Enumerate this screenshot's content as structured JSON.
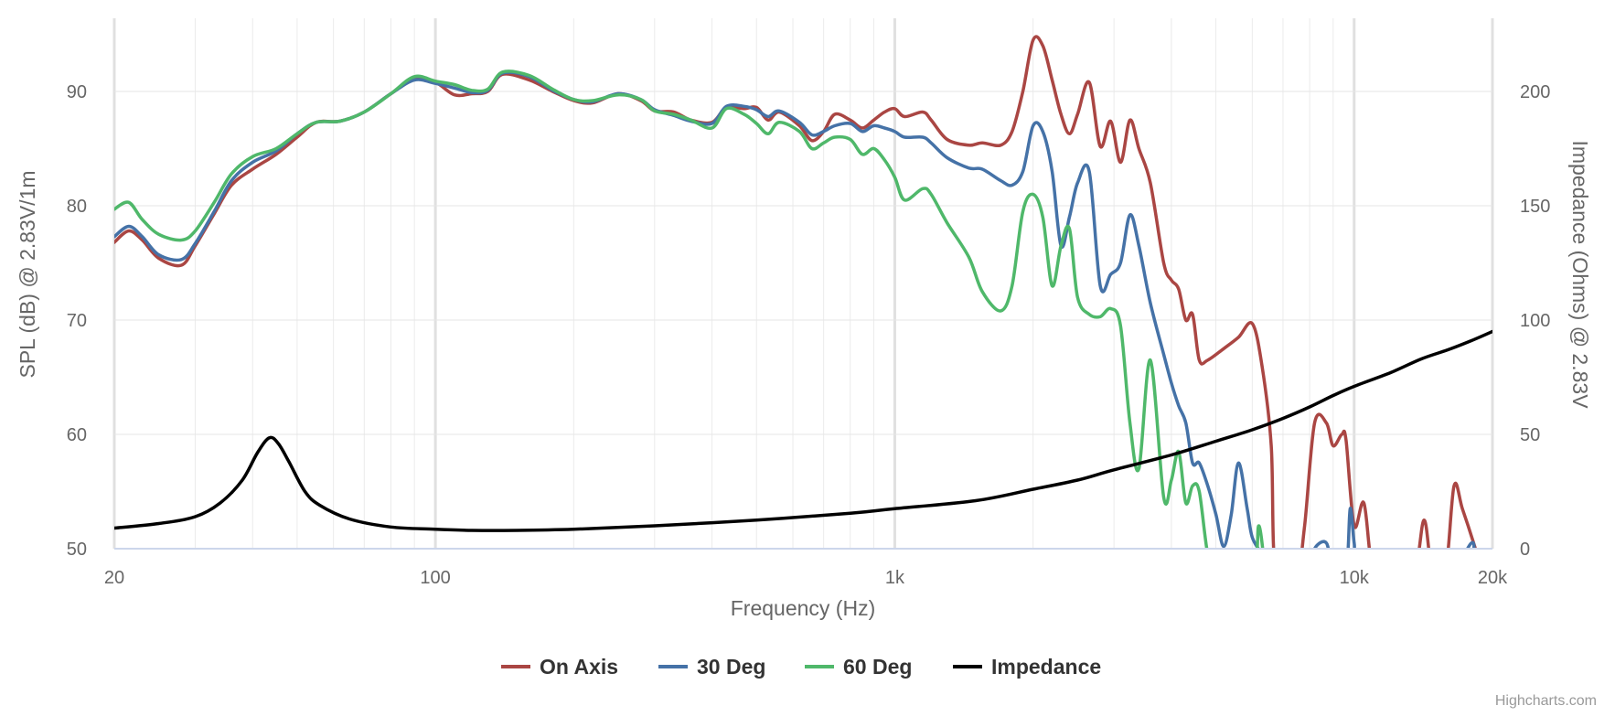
{
  "chart_data": {
    "type": "line",
    "xlabel": "Frequency (Hz)",
    "ylabel": "SPL (dB) @ 2.83V/1m",
    "y2label": "Impedance (Ohms) @ 2.83V",
    "xscale": "log",
    "xlim": [
      20,
      20000
    ],
    "ylim": [
      50,
      98
    ],
    "y2lim": [
      0,
      240
    ],
    "x_ticks": [
      {
        "value": 20,
        "label": "20"
      },
      {
        "value": 100,
        "label": "100"
      },
      {
        "value": 1000,
        "label": "1k"
      },
      {
        "value": 10000,
        "label": "10k"
      },
      {
        "value": 20000,
        "label": "20k"
      }
    ],
    "y_ticks": [
      50,
      60,
      70,
      80,
      90
    ],
    "y2_ticks": [
      0,
      50,
      100,
      150,
      200
    ],
    "legend_position": "bottom-center",
    "credit": "Highcharts.com",
    "series": [
      {
        "name": "On Axis",
        "color": "#aa4643",
        "axis": "left",
        "points": [
          [
            20,
            76.8
          ],
          [
            21.5,
            77.8
          ],
          [
            23,
            77
          ],
          [
            25,
            75.4
          ],
          [
            28,
            74.8
          ],
          [
            30,
            76.5
          ],
          [
            33,
            79.3
          ],
          [
            36,
            81.8
          ],
          [
            40,
            83.2
          ],
          [
            45,
            84.5
          ],
          [
            50,
            86
          ],
          [
            55,
            87.3
          ],
          [
            62,
            87.4
          ],
          [
            70,
            88.2
          ],
          [
            80,
            89.8
          ],
          [
            90,
            91.1
          ],
          [
            100,
            90.8
          ],
          [
            110,
            89.7
          ],
          [
            120,
            89.8
          ],
          [
            130,
            90
          ],
          [
            140,
            91.5
          ],
          [
            160,
            91
          ],
          [
            180,
            90
          ],
          [
            200,
            89.2
          ],
          [
            220,
            89
          ],
          [
            250,
            89.8
          ],
          [
            280,
            89.2
          ],
          [
            300,
            88.3
          ],
          [
            330,
            88.2
          ],
          [
            360,
            87.5
          ],
          [
            400,
            87.3
          ],
          [
            430,
            88.6
          ],
          [
            470,
            88.5
          ],
          [
            500,
            88.6
          ],
          [
            530,
            87.5
          ],
          [
            560,
            88.2
          ],
          [
            620,
            87
          ],
          [
            660,
            85.7
          ],
          [
            700,
            86.5
          ],
          [
            740,
            88
          ],
          [
            800,
            87.5
          ],
          [
            850,
            86.8
          ],
          [
            900,
            87.5
          ],
          [
            950,
            88.2
          ],
          [
            1000,
            88.5
          ],
          [
            1050,
            87.8
          ],
          [
            1150,
            88.2
          ],
          [
            1200,
            87.5
          ],
          [
            1300,
            85.8
          ],
          [
            1450,
            85.3
          ],
          [
            1550,
            85.5
          ],
          [
            1700,
            85.3
          ],
          [
            1800,
            86.5
          ],
          [
            1900,
            90
          ],
          [
            2000,
            94.5
          ],
          [
            2100,
            94
          ],
          [
            2200,
            91
          ],
          [
            2300,
            88
          ],
          [
            2400,
            86.3
          ],
          [
            2500,
            88
          ],
          [
            2650,
            90.8
          ],
          [
            2800,
            85.2
          ],
          [
            2950,
            87.4
          ],
          [
            3100,
            83.8
          ],
          [
            3250,
            87.5
          ],
          [
            3400,
            85
          ],
          [
            3600,
            82
          ],
          [
            3850,
            75
          ],
          [
            4000,
            73.5
          ],
          [
            4150,
            72.7
          ],
          [
            4300,
            70
          ],
          [
            4450,
            70.5
          ],
          [
            4600,
            66.5
          ],
          [
            4800,
            66.5
          ],
          [
            5200,
            67.5
          ],
          [
            5600,
            68.5
          ],
          [
            6000,
            69.7
          ],
          [
            6300,
            66
          ],
          [
            6600,
            59
          ],
          [
            6750,
            48
          ],
          [
            7500,
            48
          ],
          [
            7800,
            52
          ],
          [
            8200,
            61
          ],
          [
            8700,
            61
          ],
          [
            9000,
            59
          ],
          [
            9400,
            60
          ],
          [
            9600,
            59.5
          ],
          [
            10000,
            52
          ],
          [
            10500,
            54
          ],
          [
            11000,
            48
          ],
          [
            12000,
            48
          ],
          [
            13500,
            48
          ],
          [
            14200,
            52.5
          ],
          [
            14800,
            48
          ],
          [
            15800,
            48
          ],
          [
            16500,
            55.5
          ],
          [
            17200,
            53.5
          ],
          [
            18200,
            50.5
          ],
          [
            18500,
            49.5
          ]
        ]
      },
      {
        "name": "30 Deg",
        "color": "#4572a7",
        "axis": "left",
        "points": [
          [
            20,
            77.3
          ],
          [
            21.5,
            78.2
          ],
          [
            23,
            77.3
          ],
          [
            25,
            75.7
          ],
          [
            28,
            75.3
          ],
          [
            30,
            76.7
          ],
          [
            33,
            79.5
          ],
          [
            36,
            82.2
          ],
          [
            40,
            83.8
          ],
          [
            45,
            84.8
          ],
          [
            50,
            86.3
          ],
          [
            55,
            87.3
          ],
          [
            62,
            87.4
          ],
          [
            70,
            88.2
          ],
          [
            80,
            89.8
          ],
          [
            90,
            91
          ],
          [
            100,
            90.7
          ],
          [
            110,
            90.3
          ],
          [
            120,
            89.9
          ],
          [
            130,
            90.1
          ],
          [
            140,
            91.6
          ],
          [
            160,
            91.3
          ],
          [
            180,
            90.1
          ],
          [
            200,
            89.3
          ],
          [
            220,
            89.1
          ],
          [
            250,
            89.8
          ],
          [
            280,
            89.3
          ],
          [
            300,
            88.4
          ],
          [
            330,
            87.9
          ],
          [
            360,
            87.4
          ],
          [
            400,
            87.2
          ],
          [
            430,
            88.7
          ],
          [
            470,
            88.7
          ],
          [
            500,
            88.4
          ],
          [
            530,
            87.8
          ],
          [
            560,
            88.3
          ],
          [
            620,
            87.3
          ],
          [
            660,
            86.2
          ],
          [
            700,
            86.5
          ],
          [
            740,
            87
          ],
          [
            800,
            87.2
          ],
          [
            850,
            86.5
          ],
          [
            900,
            87
          ],
          [
            950,
            86.8
          ],
          [
            1000,
            86.5
          ],
          [
            1050,
            86
          ],
          [
            1150,
            86
          ],
          [
            1200,
            85.5
          ],
          [
            1300,
            84.2
          ],
          [
            1450,
            83.3
          ],
          [
            1550,
            83.2
          ],
          [
            1700,
            82.2
          ],
          [
            1800,
            81.8
          ],
          [
            1900,
            83
          ],
          [
            2000,
            87
          ],
          [
            2100,
            86.5
          ],
          [
            2200,
            83
          ],
          [
            2300,
            76.5
          ],
          [
            2400,
            79
          ],
          [
            2500,
            82
          ],
          [
            2650,
            83
          ],
          [
            2800,
            73
          ],
          [
            2950,
            74
          ],
          [
            3100,
            75
          ],
          [
            3250,
            79.2
          ],
          [
            3400,
            76.5
          ],
          [
            3600,
            71.5
          ],
          [
            3850,
            67
          ],
          [
            4000,
            64.5
          ],
          [
            4150,
            62.5
          ],
          [
            4300,
            61
          ],
          [
            4450,
            57.5
          ],
          [
            4600,
            57.5
          ],
          [
            4800,
            55.5
          ],
          [
            5000,
            53
          ],
          [
            5200,
            50.2
          ],
          [
            5400,
            53
          ],
          [
            5600,
            57.5
          ],
          [
            5850,
            53.5
          ],
          [
            6000,
            51
          ],
          [
            6300,
            49.5
          ],
          [
            6600,
            48
          ],
          [
            8000,
            48
          ],
          [
            8200,
            50
          ],
          [
            8700,
            50.5
          ],
          [
            9000,
            48
          ],
          [
            9600,
            48
          ],
          [
            9800,
            53.5
          ],
          [
            10000,
            50.5
          ],
          [
            10200,
            49
          ],
          [
            12000,
            48
          ],
          [
            16000,
            48
          ],
          [
            18000,
            50.5
          ],
          [
            18200,
            49.5
          ]
        ]
      },
      {
        "name": "60 Deg",
        "color": "#4fb86a",
        "axis": "left",
        "points": [
          [
            20,
            79.7
          ],
          [
            21.5,
            80.3
          ],
          [
            23,
            78.8
          ],
          [
            25,
            77.5
          ],
          [
            28,
            77
          ],
          [
            30,
            77.8
          ],
          [
            33,
            80.3
          ],
          [
            36,
            82.8
          ],
          [
            40,
            84.3
          ],
          [
            45,
            85
          ],
          [
            50,
            86.3
          ],
          [
            55,
            87.3
          ],
          [
            62,
            87.4
          ],
          [
            70,
            88.2
          ],
          [
            80,
            89.8
          ],
          [
            90,
            91.3
          ],
          [
            100,
            90.9
          ],
          [
            110,
            90.6
          ],
          [
            120,
            90.1
          ],
          [
            130,
            90.2
          ],
          [
            140,
            91.7
          ],
          [
            160,
            91.4
          ],
          [
            180,
            90.2
          ],
          [
            200,
            89.3
          ],
          [
            220,
            89.2
          ],
          [
            250,
            89.7
          ],
          [
            280,
            89.3
          ],
          [
            300,
            88.3
          ],
          [
            330,
            88
          ],
          [
            360,
            87.5
          ],
          [
            400,
            86.8
          ],
          [
            430,
            88.5
          ],
          [
            470,
            88
          ],
          [
            500,
            87.2
          ],
          [
            530,
            86.3
          ],
          [
            560,
            87.3
          ],
          [
            620,
            86.5
          ],
          [
            660,
            85
          ],
          [
            700,
            85.5
          ],
          [
            740,
            86
          ],
          [
            800,
            85.8
          ],
          [
            850,
            84.5
          ],
          [
            900,
            85
          ],
          [
            950,
            84
          ],
          [
            1000,
            82.5
          ],
          [
            1050,
            80.5
          ],
          [
            1150,
            81.5
          ],
          [
            1200,
            81
          ],
          [
            1300,
            78.5
          ],
          [
            1450,
            75.5
          ],
          [
            1550,
            72.5
          ],
          [
            1700,
            70.8
          ],
          [
            1800,
            73
          ],
          [
            1900,
            79.5
          ],
          [
            2000,
            81
          ],
          [
            2100,
            79
          ],
          [
            2200,
            73
          ],
          [
            2300,
            76.5
          ],
          [
            2400,
            78
          ],
          [
            2500,
            72
          ],
          [
            2650,
            70.5
          ],
          [
            2800,
            70.3
          ],
          [
            2950,
            71
          ],
          [
            3100,
            69.5
          ],
          [
            3250,
            61
          ],
          [
            3400,
            57
          ],
          [
            3600,
            66.5
          ],
          [
            3850,
            54.5
          ],
          [
            4000,
            56
          ],
          [
            4150,
            58.5
          ],
          [
            4300,
            54
          ],
          [
            4450,
            55.5
          ],
          [
            4600,
            55
          ],
          [
            4800,
            49.5
          ],
          [
            5000,
            48
          ],
          [
            6000,
            48
          ],
          [
            6200,
            52
          ],
          [
            6400,
            48
          ]
        ]
      },
      {
        "name": "Impedance",
        "color": "#000000",
        "axis": "right",
        "points": [
          [
            20,
            9
          ],
          [
            25,
            11
          ],
          [
            30,
            14
          ],
          [
            34,
            20
          ],
          [
            38,
            30
          ],
          [
            41,
            42
          ],
          [
            43.5,
            48.5
          ],
          [
            45.5,
            46
          ],
          [
            48,
            38
          ],
          [
            52,
            25
          ],
          [
            56,
            19
          ],
          [
            65,
            13
          ],
          [
            80,
            9.5
          ],
          [
            100,
            8.5
          ],
          [
            120,
            8
          ],
          [
            150,
            8
          ],
          [
            200,
            8.5
          ],
          [
            300,
            10
          ],
          [
            500,
            12.5
          ],
          [
            800,
            15.5
          ],
          [
            1000,
            17.5
          ],
          [
            1500,
            21
          ],
          [
            2000,
            26
          ],
          [
            2500,
            30
          ],
          [
            3000,
            34.5
          ],
          [
            4000,
            41
          ],
          [
            5000,
            47
          ],
          [
            6000,
            52
          ],
          [
            7000,
            57
          ],
          [
            8000,
            62
          ],
          [
            9000,
            67
          ],
          [
            10000,
            71
          ],
          [
            12000,
            77
          ],
          [
            14000,
            83
          ],
          [
            16000,
            87
          ],
          [
            18000,
            91
          ],
          [
            20000,
            95
          ]
        ]
      }
    ]
  }
}
